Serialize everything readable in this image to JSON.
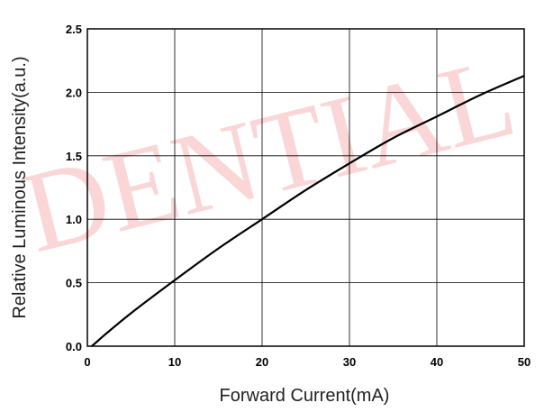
{
  "chart_data": {
    "type": "line",
    "xlabel": "Forward Current(mA)",
    "ylabel": "Relative Luminous Intensity(a.u.)",
    "xlim": [
      0,
      50
    ],
    "ylim": [
      0,
      2.5
    ],
    "x_ticks": [
      "0",
      "10",
      "20",
      "30",
      "40",
      "50"
    ],
    "y_ticks": [
      "0.0",
      "0.5",
      "1.0",
      "1.5",
      "2.0",
      "2.5"
    ],
    "grid": true,
    "series": [
      {
        "color": "#000000",
        "x": [
          0.5,
          1,
          2,
          5,
          10,
          15,
          20,
          25,
          30,
          35,
          40,
          45,
          50
        ],
        "y": [
          0.0,
          0.03,
          0.09,
          0.26,
          0.52,
          0.77,
          1.0,
          1.23,
          1.44,
          1.64,
          1.81,
          1.98,
          2.13
        ]
      }
    ]
  },
  "watermark": {
    "text": "DENTIAL",
    "color": "#e8434b"
  }
}
